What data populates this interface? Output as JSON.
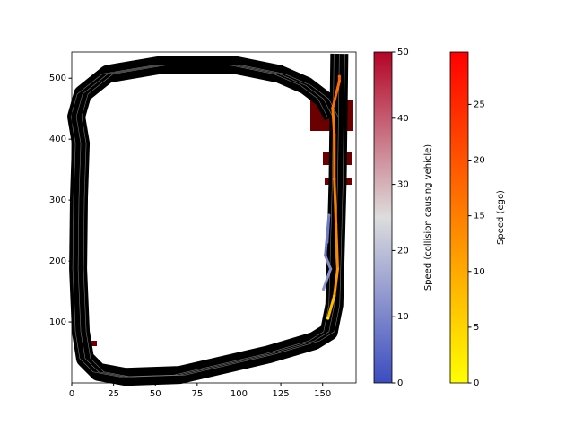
{
  "chart_data": {
    "type": "trajectory",
    "xlim": [
      0,
      170
    ],
    "ylim": [
      0,
      543
    ],
    "xticks": [
      0,
      25,
      50,
      75,
      100,
      125,
      150
    ],
    "yticks": [
      100,
      200,
      300,
      400,
      500
    ],
    "track": {
      "color": "#000000",
      "lane_color": "#777777",
      "x": [
        160,
        159,
        157,
        153.8,
        145,
        118,
        64.5,
        32,
        16,
        8,
        5.4,
        3.8,
        4.3,
        5.4,
        2.7,
        6.5,
        21.5,
        54,
        97,
        124,
        140,
        150.5,
        156
      ],
      "y": [
        540,
        334,
        128,
        84,
        69,
        47,
        13,
        10,
        18,
        40,
        84,
        187,
        304,
        393,
        437,
        474,
        507,
        522,
        522,
        507,
        488,
        466,
        437
      ]
    },
    "trajectories": [
      {
        "colorbar": 1,
        "x": [
          153.2,
          157,
          159,
          158,
          157,
          157,
          156,
          160,
          160
        ],
        "y": [
          106,
          143,
          187,
          260,
          334,
          407,
          451,
          495,
          503
        ],
        "speed": [
          2,
          8,
          12,
          14,
          15,
          16,
          16,
          17,
          18
        ]
      },
      {
        "colorbar": 0,
        "x": [
          152.7,
          153.8,
          151.6,
          154.8,
          150.5
        ],
        "y": [
          231,
          275,
          209,
          187,
          154
        ],
        "speed": [
          9,
          10,
          8,
          11,
          12
        ]
      }
    ],
    "colorbars": [
      {
        "label": "Speed (collision causing vehicle)",
        "lim": [
          0,
          50
        ],
        "ticks": [
          0,
          10,
          20,
          30,
          40,
          50
        ],
        "colormap": [
          "#3b4cc0",
          "#dddddd",
          "#b40426"
        ]
      },
      {
        "label": "Speed (ego)",
        "lim": [
          0,
          29.7
        ],
        "ticks": [
          0,
          5,
          10,
          15,
          20,
          25
        ],
        "colormap": [
          "#ffff00",
          "#ff0000"
        ]
      }
    ]
  }
}
